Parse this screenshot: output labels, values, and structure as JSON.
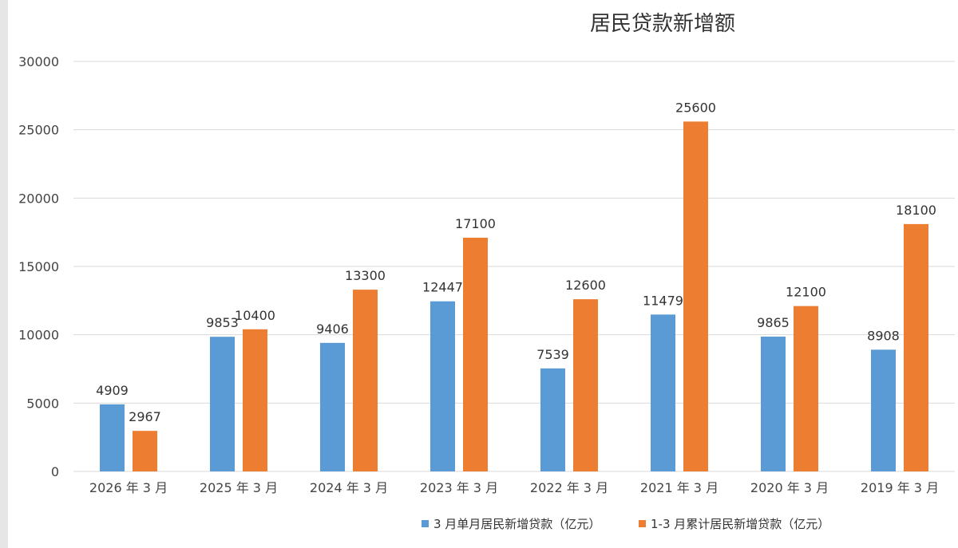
{
  "chart_data": {
    "type": "bar",
    "title": "居民贷款新增额",
    "categories": [
      "2026 年 3 月",
      "2025 年 3 月",
      "2024 年 3 月",
      "2023 年 3 月",
      "2022 年 3 月",
      "2021 年 3 月",
      "2020 年 3 月",
      "2019 年 3 月"
    ],
    "series": [
      {
        "name": "3 月单月居民新增贷款（亿元）",
        "color": "#5b9bd5",
        "values": [
          4909,
          9853,
          9406,
          12447,
          7539,
          11479,
          9865,
          8908
        ]
      },
      {
        "name": "1-3 月累计居民新增贷款（亿元）",
        "color": "#ed7d31",
        "values": [
          2967,
          10400,
          13300,
          17100,
          12600,
          25600,
          12100,
          18100
        ]
      }
    ],
    "yticks": [
      0,
      5000,
      10000,
      15000,
      20000,
      25000,
      30000
    ],
    "ylim": [
      0,
      30000
    ],
    "grid": true,
    "legend_position": "bottom-right"
  }
}
